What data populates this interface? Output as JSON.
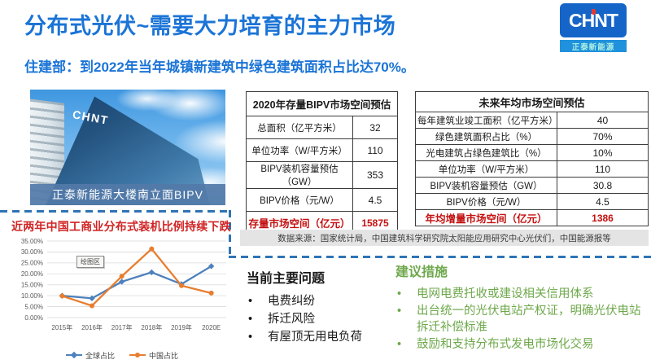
{
  "header": {
    "title": "分布式光伏~需要大力培育的主力市场",
    "subtitle": "住建部：到2022年当年城镇新建筑中绿色建筑面积占比达70%。"
  },
  "logo": {
    "text": "CHNT",
    "subtext": "正泰新能源"
  },
  "photo": {
    "facade_text": "CHNT",
    "caption": "正泰新能源大楼南立面BIPV"
  },
  "stock_table": {
    "title": "2020年存量BIPV市场空间预估",
    "rows": [
      {
        "label": "总面积（亿平方米）",
        "value": "32"
      },
      {
        "label": "单位功率（W/平方米）",
        "value": "110"
      },
      {
        "label": "BIPV装机容量预估（GW）",
        "value": "353"
      },
      {
        "label": "BIPV价格（元/W）",
        "value": "4.5"
      }
    ],
    "total_row": {
      "label": "存量市场空间（亿元）",
      "value": "15875"
    }
  },
  "future_table": {
    "title": "未来年均市场空间预估",
    "rows": [
      {
        "label": "每年建筑业竣工面积（亿平方米）",
        "value": "40"
      },
      {
        "label": "绿色建筑面积占比（%）",
        "value": "70%"
      },
      {
        "label": "光电建筑占绿色建筑比（%）",
        "value": "10%"
      },
      {
        "label": "单位功率（W/平方米）",
        "value": "110"
      },
      {
        "label": "BIPV装机容量预估（GW）",
        "value": "30.8"
      },
      {
        "label": "BIPV价格（元/W）",
        "value": "4.5"
      }
    ],
    "total_row": {
      "label": "年均增量市场空间（亿元）",
      "value": "1386"
    }
  },
  "source_note": "数据来源：国家统计局，中国建筑科学研究院太阳能应用研究中心光伏们，中国能源报等",
  "chart_data": {
    "type": "line",
    "title": "近两年中国工商业分布式装机比例持续下跌",
    "categories": [
      "2015年",
      "2016年",
      "2017年",
      "2018年",
      "2019年",
      "2020E"
    ],
    "series": [
      {
        "name": "全球占比",
        "color": "#4e81bd",
        "marker": "diamond",
        "values": [
          10.0,
          8.8,
          16.4,
          20.7,
          15.3,
          23.5
        ]
      },
      {
        "name": "中国占比",
        "color": "#e87d2e",
        "marker": "circle",
        "values": [
          9.9,
          5.4,
          18.9,
          31.4,
          14.6,
          11.2
        ]
      }
    ],
    "ylim": [
      0,
      35
    ],
    "ytick_step": 5,
    "ytick_format": "0.00%",
    "grid": true,
    "legend_position": "bottom",
    "plot_area_tooltip": "绘图区"
  },
  "problems": {
    "title": "当前主要问题",
    "bullet": "•",
    "items": [
      "电费纠纷",
      "拆迁风险",
      "有屋顶无用电负荷"
    ]
  },
  "suggestions": {
    "title": "建议措施",
    "bullet": "•",
    "items": [
      "电网电费托收或建设相关信用体系",
      "出台统一的光伏电站产权证，明确光伏电站拆迁补偿标准",
      "鼓励和支持分布式发电市场化交易"
    ]
  },
  "colors": {
    "accent_blue": "#1b74d6",
    "logo_blue": "#1565c8",
    "highlight_red": "#c40f0f",
    "chart_title_red": "#d02424",
    "suggestion_green": "#6ea84b",
    "dashed_border": "#2e74b5",
    "global_series": "#4e81bd",
    "china_series": "#e87d2e"
  }
}
